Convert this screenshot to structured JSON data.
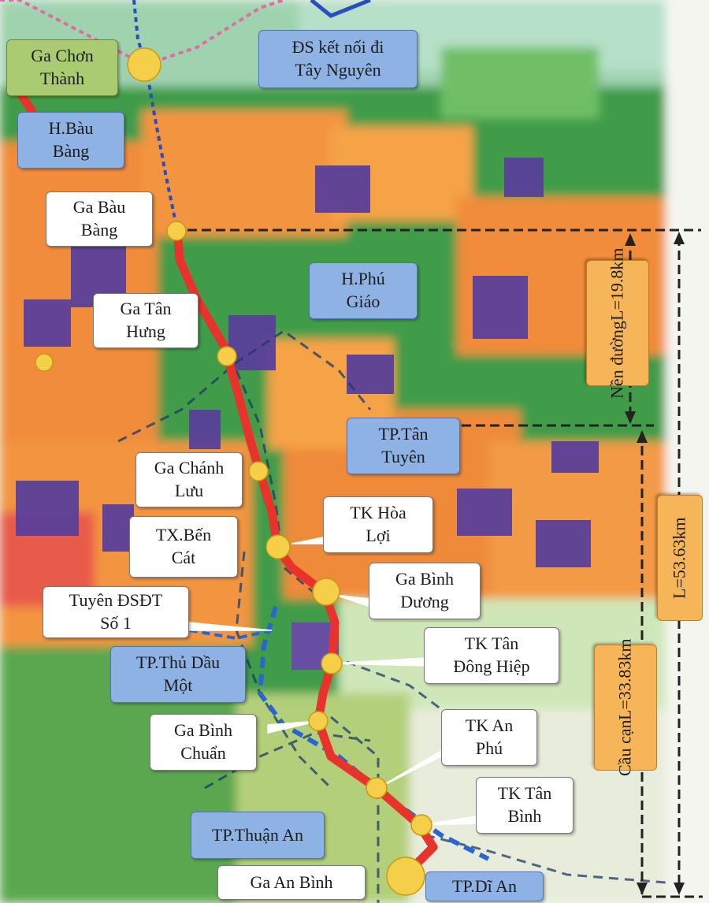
{
  "labels": {
    "ga_chon_thanh": [
      "Ga Chơn",
      "Thành"
    ],
    "ds_tay_nguyen": [
      "ĐS  kết nối đi",
      "Tây Nguyên"
    ],
    "h_bau_bang": [
      "H.Bàu",
      "Bàng"
    ],
    "ga_bau_bang": [
      "Ga Bàu",
      "Bàng"
    ],
    "h_phu_giao": [
      "H.Phú",
      "Giáo"
    ],
    "ga_tan_hung": [
      "Ga Tân",
      "Hưng"
    ],
    "tp_tan_uyen": [
      "TP.Tân",
      "Tuyên"
    ],
    "ga_chanh_luu": [
      "Ga Chánh",
      "Lưu"
    ],
    "tk_hoa_loi": [
      "TK Hòa",
      "Lợi"
    ],
    "tx_ben_cat": [
      "TX.Bến",
      "Cát"
    ],
    "ga_binh_duong": [
      "Ga Bình",
      "Dương"
    ],
    "tuyen_dsdt": [
      "Tuyên ĐSĐT",
      "Số 1"
    ],
    "tk_tan_dong_hiep": [
      "TK Tân",
      "Đông Hiệp"
    ],
    "tp_thu_dau_mot": [
      "TP.Thủ Dầu",
      "Một"
    ],
    "ga_binh_chuan": [
      "Ga Bình",
      "Chuẩn"
    ],
    "tk_an_phu": [
      "TK An",
      "Phú"
    ],
    "tk_tan_binh": [
      "TK Tân",
      "Bình"
    ],
    "tp_thuan_an": [
      "TP.Thuận An"
    ],
    "ga_an_binh": [
      "Ga An Bình"
    ],
    "tp_di_an": [
      "TP.Dĩ An"
    ],
    "nen_duong": [
      "Nền đường",
      "L=19.8km"
    ],
    "total_length": [
      "L=53.63km"
    ],
    "cau_can": [
      "Cầu cạn",
      "L=33.83km"
    ]
  },
  "colors": {
    "rail_line": "#e8332d",
    "station": "#f5cf4a",
    "white_label": "#ffffff",
    "district_label": "#8fb2e4",
    "province_label": "#aacb72",
    "segment_label": "#f7b55a",
    "connector_line": "#3060c0",
    "dimension_line": "#222222"
  }
}
